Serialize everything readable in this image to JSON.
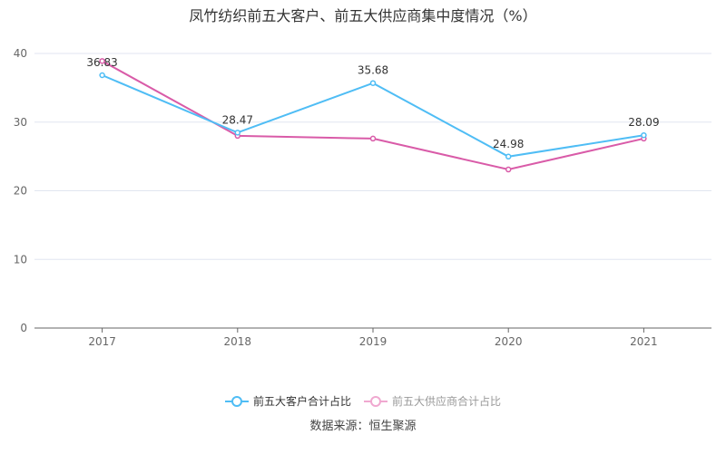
{
  "chart_data": {
    "type": "line",
    "title": "凤竹纺织前五大客户、前五大供应商集中度情况（%）",
    "categories": [
      "2017",
      "2018",
      "2019",
      "2020",
      "2021"
    ],
    "ylim": [
      0,
      40
    ],
    "yticks": [
      "0",
      "10",
      "20",
      "30",
      "40"
    ],
    "grid": true,
    "legend_position": "bottom",
    "series": [
      {
        "name": "前五大客户合计占比",
        "values": [
          36.83,
          28.47,
          35.68,
          24.98,
          28.09
        ],
        "labels": [
          "36.83",
          "28.47",
          "35.68",
          "24.98",
          "28.09"
        ],
        "color": "#4fbdf5"
      },
      {
        "name": "前五大供应商合计占比",
        "values": [
          38.9,
          28.0,
          27.6,
          23.1,
          27.6
        ],
        "color": "#d95ba8",
        "legend_color": "#f0a8d0"
      }
    ]
  },
  "source": "数据来源：恒生聚源"
}
